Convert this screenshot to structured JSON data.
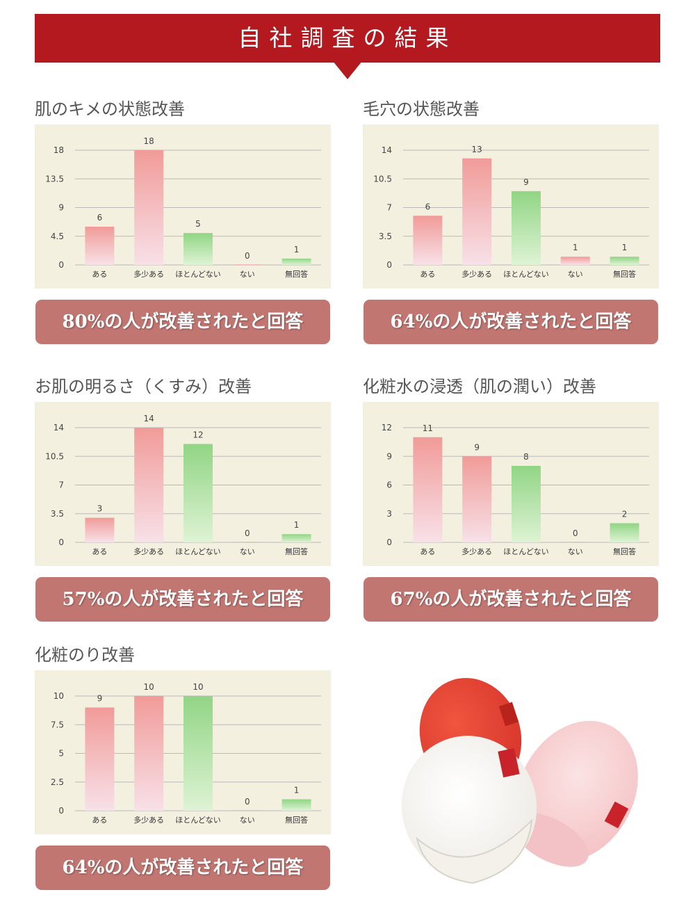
{
  "header": {
    "title": "自社調査の結果"
  },
  "colors": {
    "banner": "#b3191f",
    "result_bg": "#c27671",
    "chart_bg": "#f4f0e0",
    "pink_top": "#f19b98",
    "pink_bottom": "#f7e1e8",
    "green_top": "#91d585",
    "green_bottom": "#def3d4",
    "grid": "#b9b9b9"
  },
  "panels": [
    {
      "title": "肌のキメの状態改善",
      "result": "80%の人が改善されたと回答"
    },
    {
      "title": "毛穴の状態改善",
      "result": "64%の人が改善されたと回答"
    },
    {
      "title": "お肌の明るさ（くすみ）改善",
      "result": "57%の人が改善されたと回答"
    },
    {
      "title": "化粧水の浸透（肌の潤い）改善",
      "result": "67%の人が改善されたと回答"
    },
    {
      "title": "化粧のり改善",
      "result": "64%の人が改善されたと回答"
    }
  ],
  "chart_data": [
    {
      "type": "bar",
      "title": "肌のキメの状態改善",
      "categories": [
        "ある",
        "多少ある",
        "ほとんどない",
        "ない",
        "無回答"
      ],
      "values": [
        6,
        18,
        5,
        0,
        1
      ],
      "yticks": [
        "0",
        "4.5",
        "9",
        "13.5",
        "18"
      ],
      "ylim": [
        0,
        18
      ],
      "grid": true
    },
    {
      "type": "bar",
      "title": "毛穴の状態改善",
      "categories": [
        "ある",
        "多少ある",
        "ほとんどない",
        "ない",
        "無回答"
      ],
      "values": [
        6,
        13,
        9,
        1,
        1
      ],
      "yticks": [
        "0",
        "3.5",
        "7",
        "10.5",
        "14"
      ],
      "ylim": [
        0,
        14
      ],
      "grid": true
    },
    {
      "type": "bar",
      "title": "お肌の明るさ（くすみ）改善",
      "categories": [
        "ある",
        "多少ある",
        "ほとんどない",
        "ない",
        "無回答"
      ],
      "values": [
        3,
        14,
        12,
        0,
        1
      ],
      "yticks": [
        "0",
        "3.5",
        "7",
        "10.5",
        "14"
      ],
      "ylim": [
        0,
        14
      ],
      "grid": true
    },
    {
      "type": "bar",
      "title": "化粧水の浸透（肌の潤い）改善",
      "categories": [
        "ある",
        "多少ある",
        "ほとんどない",
        "ない",
        "無回答"
      ],
      "values": [
        11,
        9,
        8,
        0,
        2
      ],
      "yticks": [
        "0",
        "3",
        "6",
        "9",
        "12"
      ],
      "ylim": [
        0,
        12
      ],
      "grid": true
    },
    {
      "type": "bar",
      "title": "化粧のり改善",
      "categories": [
        "ある",
        "多少ある",
        "ほとんどない",
        "ない",
        "無回答"
      ],
      "values": [
        9,
        10,
        10,
        0,
        1
      ],
      "yticks": [
        "0",
        "2.5",
        "5",
        "7.5",
        "10"
      ],
      "ylim": [
        0,
        10
      ],
      "grid": true
    }
  ]
}
